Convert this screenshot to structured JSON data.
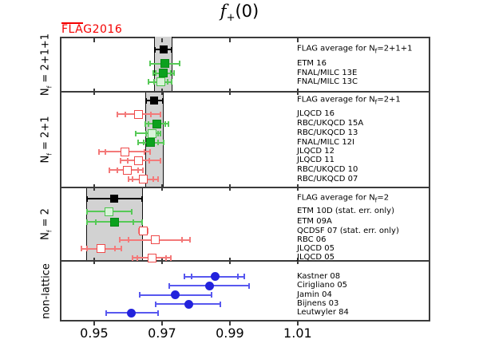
{
  "header": {
    "title": {
      "main": "f",
      "sub": "+",
      "rest": "(0)"
    },
    "watermark": {
      "over": "FLA",
      "rest": "G2016"
    }
  },
  "chart_data": {
    "type": "scatter",
    "title": "f+(0)",
    "watermark": "FLAG2016",
    "xlabel": "",
    "ylabel": "",
    "xlim": [
      0.9399,
      1.0491
    ],
    "xticks": [
      0.95,
      0.97,
      0.99,
      1.01
    ],
    "xtick_labels": [
      "0.95",
      "0.97",
      "0.99",
      "1.01"
    ],
    "grid": false,
    "legend_position": "right-inside",
    "styles": {
      "black_filled": {
        "fill": "#000000",
        "edge": "#000000",
        "bar": "#000000",
        "shape": "square",
        "size": 10
      },
      "green_filled": {
        "fill": "#0ca11e",
        "edge": "#098815",
        "bar": "#57c957",
        "shape": "square",
        "size": 11
      },
      "green_open": {
        "fill": "#d9f3d9",
        "edge": "#4dc34d",
        "bar": "#57c957",
        "shape": "square",
        "size": 11
      },
      "red_open": {
        "fill": "#ffffff",
        "edge": "#ee4a4a",
        "bar": "#f37a7a",
        "shape": "square",
        "size": 11
      },
      "blue_circle": {
        "fill": "#2222dc",
        "edge": "#2222dc",
        "bar": "#5858ef",
        "shape": "circle",
        "size": 11
      }
    },
    "band_color": "#d2d2d2",
    "frame_color": "#3b3b3b",
    "watermark_color": "#f40000",
    "sections": [
      {
        "id": "nf-2+1+1",
        "label": {
          "pre": "N",
          "sub": "f",
          "post": " = 2+1+1"
        },
        "band": {
          "min": 0.9677,
          "max": 0.9731
        },
        "points": [
          {
            "label": {
              "pre": "FLAG average for N",
              "sub": "f",
              "post": "=2+1+1"
            },
            "value": 0.9704,
            "err_lo": 0.0027,
            "err_hi": 0.0027,
            "style": "black_filled"
          },
          {
            "label": "ETM 16",
            "value": 0.9709,
            "err_lo": 0.0046,
            "err_hi": 0.0046,
            "style": "green_filled"
          },
          {
            "label": "FNAL/MILC 13E",
            "value": 0.9704,
            "err_lo": 0.0033,
            "err_hi": 0.0033,
            "inner_lo": 0.0024,
            "inner_hi": 0.0024,
            "style": "green_filled"
          },
          {
            "label": "FNAL/MILC 13C",
            "value": 0.9696,
            "err_lo": 0.0037,
            "err_hi": 0.0036,
            "inner_lo": 0.0022,
            "inner_hi": 0.0022,
            "style": "green_open"
          }
        ]
      },
      {
        "id": "nf-2+1",
        "label": {
          "pre": "N",
          "sub": "f",
          "post": " = 2+1"
        },
        "band": {
          "min": 0.965,
          "max": 0.9704
        },
        "points": [
          {
            "label": {
              "pre": "FLAG average for N",
              "sub": "f",
              "post": "=2+1"
            },
            "value": 0.9677,
            "err_lo": 0.0027,
            "err_hi": 0.0027,
            "style": "black_filled"
          },
          {
            "label": "JLQCD 16",
            "value": 0.963,
            "err_lo": 0.0063,
            "err_hi": 0.0067,
            "inner_lo": 0.004,
            "inner_hi": 0.004,
            "style": "red_open"
          },
          {
            "label": "RBC/UKQCD 15A",
            "value": 0.9685,
            "err_lo": 0.0037,
            "err_hi": 0.0036,
            "inner_lo": 0.0026,
            "inner_hi": 0.0026,
            "style": "green_filled"
          },
          {
            "label": "RBC/UKQCD 13",
            "value": 0.967,
            "err_lo": 0.005,
            "err_hi": 0.0027,
            "inner_lo": 0.002,
            "inner_hi": 0.002,
            "style": "green_open"
          },
          {
            "label": "FNAL/MILC 12I",
            "value": 0.9667,
            "err_lo": 0.004,
            "err_hi": 0.004,
            "inner_lo": 0.0024,
            "inner_hi": 0.0024,
            "style": "green_filled"
          },
          {
            "label": "JLQCD 12",
            "value": 0.959,
            "err_lo": 0.0078,
            "err_hi": 0.0078,
            "inner_lo": 0.006,
            "inner_hi": 0.006,
            "style": "red_open"
          },
          {
            "label": "JLQCD 11",
            "value": 0.963,
            "err_lo": 0.0055,
            "err_hi": 0.0067,
            "inner_lo": 0.0034,
            "inner_hi": 0.0034,
            "style": "red_open"
          },
          {
            "label": "RBC/UKQCD 10",
            "value": 0.9599,
            "err_lo": 0.0056,
            "err_hi": 0.0047,
            "inner_lo": 0.0034,
            "inner_hi": 0.0034,
            "style": "red_open"
          },
          {
            "label": "RBC/UKQCD 07",
            "value": 0.9644,
            "err_lo": 0.0045,
            "err_hi": 0.0047,
            "inner_lo": 0.0033,
            "inner_hi": 0.0033,
            "style": "red_open"
          }
        ]
      },
      {
        "id": "nf-2",
        "label": {
          "pre": "N",
          "sub": "f",
          "post": " = 2"
        },
        "band": {
          "min": 0.9476,
          "max": 0.9644
        },
        "points": [
          {
            "label": {
              "pre": "FLAG average for N",
              "sub": "f",
              "post": "=2"
            },
            "value": 0.956,
            "err_lo": 0.0084,
            "err_hi": 0.0084,
            "style": "black_filled"
          },
          {
            "label": "ETM 10D (stat. err. only)",
            "value": 0.9544,
            "err_lo": 0.0068,
            "err_hi": 0.0068,
            "style": "green_open"
          },
          {
            "label": "ETM 09A",
            "value": 0.956,
            "err_lo": 0.0084,
            "err_hi": 0.0084,
            "inner_lo": 0.0057,
            "inner_hi": 0.0057,
            "style": "green_filled"
          },
          {
            "label": "QCDSF 07 (stat. err. only)",
            "value": 0.9645,
            "err_lo": 0.0015,
            "err_hi": 0.0015,
            "style": "red_open"
          },
          {
            "label": "RBC 06",
            "value": 0.968,
            "err_lo": 0.0106,
            "err_hi": 0.0106,
            "inner_lo": 0.0082,
            "inner_hi": 0.0082,
            "style": "red_open"
          },
          {
            "label": "JLQCD 05",
            "value": 0.952,
            "err_lo": 0.0059,
            "err_hi": 0.0063,
            "inner_lo": 0.0044,
            "inner_hi": 0.0044,
            "style": "red_open"
          },
          {
            "label": "JLQCD 05",
            "value": 0.967,
            "err_lo": 0.006,
            "err_hi": 0.0059,
            "inner_lo": 0.0044,
            "inner_hi": 0.0044,
            "style": "red_open"
          }
        ]
      },
      {
        "id": "non-lattice",
        "label": "non-lattice",
        "band": null,
        "points": [
          {
            "label": "Kastner 08",
            "value": 0.9856,
            "err_lo": 0.0092,
            "err_hi": 0.0089,
            "inner_lo": 0.007,
            "inner_hi": 0.007,
            "style": "blue_circle"
          },
          {
            "label": "Cirigliano 05",
            "value": 0.984,
            "err_lo": 0.012,
            "err_hi": 0.0119,
            "style": "blue_circle"
          },
          {
            "label": "Jamin 04",
            "value": 0.974,
            "err_lo": 0.0108,
            "err_hi": 0.0108,
            "style": "blue_circle"
          },
          {
            "label": "Bijnens 03",
            "value": 0.978,
            "err_lo": 0.01,
            "err_hi": 0.0095,
            "style": "blue_circle"
          },
          {
            "label": "Leutwyler 84",
            "value": 0.961,
            "err_lo": 0.0078,
            "err_hi": 0.0081,
            "style": "blue_circle"
          }
        ]
      }
    ]
  }
}
